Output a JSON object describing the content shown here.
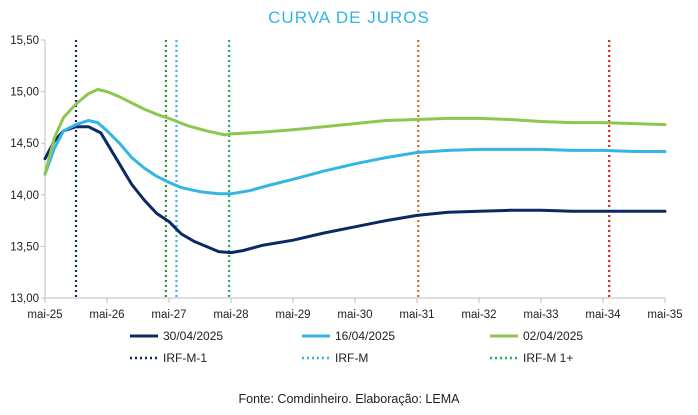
{
  "chart_data": {
    "type": "line",
    "title": "CURVA DE JUROS",
    "xlabel": "",
    "ylabel": "",
    "ylim": [
      13.0,
      15.5
    ],
    "xlim": [
      0,
      10
    ],
    "y_ticks": [
      "13,00",
      "13,50",
      "14,00",
      "14,50",
      "15,00",
      "15,50"
    ],
    "y_tick_values": [
      13.0,
      13.5,
      14.0,
      14.5,
      15.0,
      15.5
    ],
    "categories": [
      "mai-25",
      "mai-26",
      "mai-27",
      "mai-28",
      "mai-29",
      "mai-30",
      "mai-31",
      "mai-32",
      "mai-33",
      "mai-34",
      "mai-35"
    ],
    "grid": false,
    "legend_position": "bottom",
    "series": [
      {
        "name": "30/04/2025",
        "color": "#0b2a63",
        "x": [
          0,
          0.15,
          0.3,
          0.5,
          0.7,
          0.9,
          1.0,
          1.2,
          1.4,
          1.6,
          1.8,
          2.0,
          2.2,
          2.4,
          2.6,
          2.8,
          3.0,
          3.2,
          3.5,
          4.0,
          4.5,
          5.0,
          5.5,
          6.0,
          6.5,
          7.0,
          7.5,
          8.0,
          8.5,
          9.0,
          9.5,
          10.0
        ],
        "values": [
          14.35,
          14.52,
          14.62,
          14.66,
          14.66,
          14.6,
          14.5,
          14.3,
          14.1,
          13.95,
          13.82,
          13.74,
          13.62,
          13.55,
          13.5,
          13.45,
          13.44,
          13.46,
          13.51,
          13.56,
          13.63,
          13.69,
          13.75,
          13.8,
          13.83,
          13.84,
          13.85,
          13.85,
          13.84,
          13.84,
          13.84,
          13.84
        ]
      },
      {
        "name": "16/04/2025",
        "color": "#33b5e5",
        "x": [
          0,
          0.15,
          0.3,
          0.5,
          0.7,
          0.85,
          1.0,
          1.2,
          1.4,
          1.6,
          1.8,
          2.0,
          2.2,
          2.5,
          2.8,
          3.0,
          3.3,
          3.6,
          4.0,
          4.5,
          5.0,
          5.5,
          6.0,
          6.5,
          7.0,
          7.5,
          8.0,
          8.5,
          9.0,
          9.5,
          10.0
        ],
        "values": [
          14.2,
          14.45,
          14.62,
          14.68,
          14.72,
          14.7,
          14.62,
          14.5,
          14.36,
          14.26,
          14.18,
          14.12,
          14.07,
          14.03,
          14.01,
          14.01,
          14.04,
          14.09,
          14.15,
          14.23,
          14.3,
          14.36,
          14.41,
          14.43,
          14.44,
          14.44,
          14.44,
          14.43,
          14.43,
          14.42,
          14.42
        ]
      },
      {
        "name": "02/04/2025",
        "color": "#8dc74f",
        "x": [
          0,
          0.15,
          0.3,
          0.5,
          0.7,
          0.85,
          1.0,
          1.2,
          1.4,
          1.6,
          1.8,
          2.0,
          2.3,
          2.6,
          2.9,
          3.0,
          3.3,
          3.6,
          4.0,
          4.5,
          5.0,
          5.5,
          6.0,
          6.5,
          7.0,
          7.5,
          8.0,
          8.5,
          9.0,
          9.5,
          10.0
        ],
        "values": [
          14.2,
          14.55,
          14.75,
          14.88,
          14.98,
          15.02,
          15.0,
          14.95,
          14.89,
          14.83,
          14.78,
          14.74,
          14.67,
          14.62,
          14.58,
          14.59,
          14.6,
          14.61,
          14.63,
          14.66,
          14.69,
          14.72,
          14.73,
          14.74,
          14.74,
          14.73,
          14.71,
          14.7,
          14.7,
          14.69,
          14.68
        ]
      }
    ],
    "vlines": [
      {
        "name": "IRF-M-1",
        "x": 0.5,
        "color": "#0b2a63",
        "in_legend": true
      },
      {
        "name": "IRF-M",
        "x": 2.12,
        "color": "#33b5e5",
        "in_legend": true
      },
      {
        "name": "IRF-M 1+",
        "x": 2.97,
        "color": "#1fb05a",
        "in_legend": true
      },
      {
        "name": "",
        "x": 1.95,
        "color": "#3c8a2e",
        "in_legend": false
      },
      {
        "name": "",
        "x": 6.02,
        "color": "#c86b2a",
        "in_legend": false
      },
      {
        "name": "",
        "x": 9.1,
        "color": "#e0201c",
        "in_legend": false
      }
    ]
  },
  "footer": {
    "source": "Fonte: Comdinheiro. Elaboração: LEMA"
  }
}
